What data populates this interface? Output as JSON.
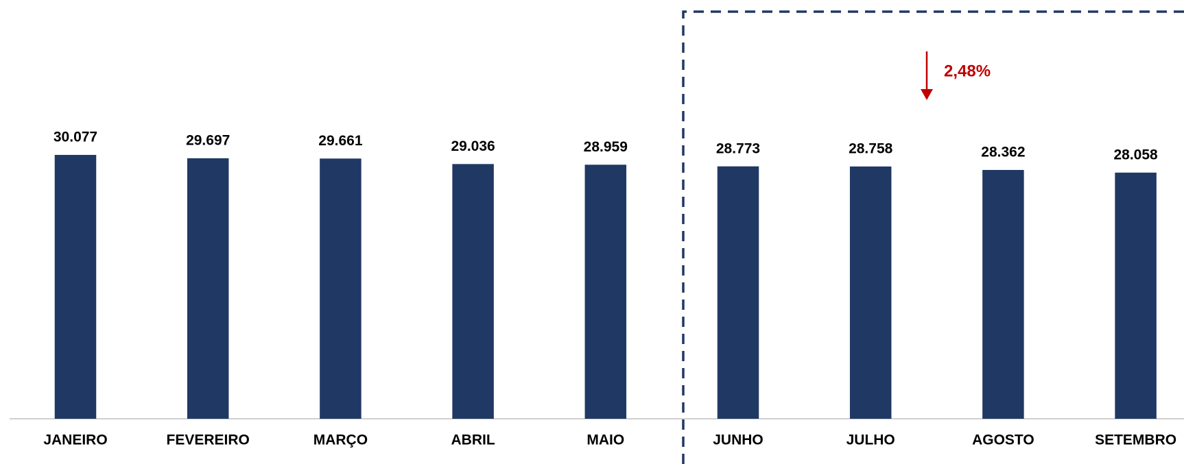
{
  "chart_data": {
    "type": "bar",
    "categories": [
      "JANEIRO",
      "FEVEREIRO",
      "MARÇO",
      "ABRIL",
      "MAIO",
      "JUNHO",
      "JULHO",
      "AGOSTO",
      "SETEMBRO"
    ],
    "values": [
      30077,
      29697,
      29661,
      29036,
      28959,
      28773,
      28758,
      28362,
      28058
    ],
    "value_labels": [
      "30.077",
      "29.697",
      "29.661",
      "29.036",
      "28.959",
      "28.773",
      "28.758",
      "28.362",
      "28.058"
    ],
    "color": "#203864",
    "ylim": [
      0,
      35000
    ],
    "annotation": "2,48%",
    "annotation_color": "#c00000"
  }
}
